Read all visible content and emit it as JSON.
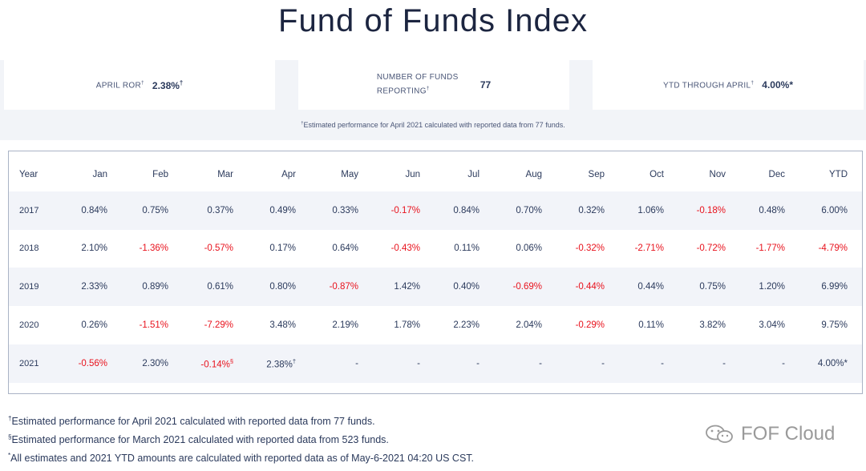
{
  "header": {
    "title": "Fund of Funds Index"
  },
  "stats": [
    {
      "label": "APRIL ROR",
      "label_sup": "†",
      "value": "2.38%",
      "value_sup": "†"
    },
    {
      "label": "NUMBER OF FUNDS REPORTING",
      "label_sup": "†",
      "value": "77"
    },
    {
      "label": "YTD THROUGH APRIL",
      "label_sup": "†",
      "value": "4.00%*"
    }
  ],
  "stats_note": {
    "sup": "†",
    "text": "Estimated performance for April 2021 calculated with reported data from 77 funds."
  },
  "table": {
    "columns": [
      "Year",
      "Jan",
      "Feb",
      "Mar",
      "Apr",
      "May",
      "Jun",
      "Jul",
      "Aug",
      "Sep",
      "Oct",
      "Nov",
      "Dec",
      "YTD"
    ],
    "rows": [
      [
        "2017",
        "0.84%",
        "0.75%",
        "0.37%",
        "0.49%",
        "0.33%",
        "-0.17%",
        "0.84%",
        "0.70%",
        "0.32%",
        "1.06%",
        "-0.18%",
        "0.48%",
        "6.00%"
      ],
      [
        "2018",
        "2.10%",
        "-1.36%",
        "-0.57%",
        "0.17%",
        "0.64%",
        "-0.43%",
        "0.11%",
        "0.06%",
        "-0.32%",
        "-2.71%",
        "-0.72%",
        "-1.77%",
        "-4.79%"
      ],
      [
        "2019",
        "2.33%",
        "0.89%",
        "0.61%",
        "0.80%",
        "-0.87%",
        "1.42%",
        "0.40%",
        "-0.69%",
        "-0.44%",
        "0.44%",
        "0.75%",
        "1.20%",
        "6.99%"
      ],
      [
        "2020",
        "0.26%",
        "-1.51%",
        "-7.29%",
        "3.48%",
        "2.19%",
        "1.78%",
        "2.23%",
        "2.04%",
        "-0.29%",
        "0.11%",
        "3.82%",
        "3.04%",
        "9.75%"
      ],
      [
        "2021",
        "-0.56%",
        "2.30%",
        {
          "text": "-0.14%",
          "sup": "§"
        },
        {
          "text": "2.38%",
          "sup": "†"
        },
        "-",
        "-",
        "-",
        "-",
        "-",
        "-",
        "-",
        "-",
        "4.00%*"
      ]
    ]
  },
  "footnotes": [
    {
      "sup": "†",
      "text": "Estimated performance for April 2021 calculated with reported data from 77 funds."
    },
    {
      "sup": "§",
      "text": "Estimated performance for March 2021 calculated with reported data from 523 funds."
    },
    {
      "sup": "*",
      "text": "All estimates and 2021 YTD amounts are calculated with reported data as of May-6-2021 04:20 US CST."
    }
  ],
  "watermark": "FOF Cloud"
}
